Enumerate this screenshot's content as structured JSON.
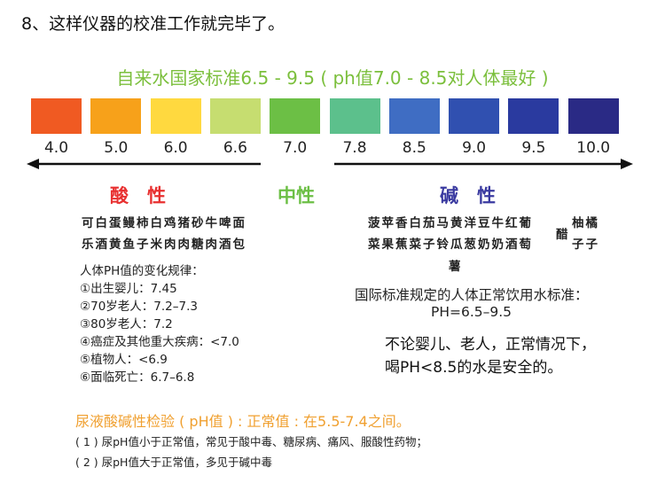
{
  "step_title": "8、这样仪器的校准工作就完毕了。",
  "scale_title": "自来水国家标准6.5 - 9.5 ( ph值7.0 - 8.5对人体最好 )",
  "scale": {
    "swatches": [
      {
        "label": "4.0",
        "color": "#f05a22"
      },
      {
        "label": "5.0",
        "color": "#f7a11a"
      },
      {
        "label": "6.0",
        "color": "#ffd93f"
      },
      {
        "label": "6.6",
        "color": "#c6dd70"
      },
      {
        "label": "7.0",
        "color": "#6cbf45"
      },
      {
        "label": "7.8",
        "color": "#5cc08c"
      },
      {
        "label": "8.5",
        "color": "#3f6dc3"
      },
      {
        "label": "9.0",
        "color": "#3050b0"
      },
      {
        "label": "9.5",
        "color": "#2a3a9f"
      },
      {
        "label": "10.0",
        "color": "#2a2a85"
      }
    ]
  },
  "categories": {
    "acid": "酸　性",
    "neutral": "中性",
    "alkaline": "碱　性",
    "acid_color": "#e83030",
    "neutral_color": "#6cbf45",
    "alkaline_color": "#3a3aa0"
  },
  "acid_foods": [
    "可白蛋鳗柿白鸡猪砂牛啤面",
    "乐酒黄鱼子米肉肉糖肉酒包"
  ],
  "alkaline_foods": {
    "line1": "菠苹香白茄马黄洋豆牛红葡",
    "line2": "菜果蕉菜子铃瓜葱奶奶酒萄",
    "line3": "薯",
    "vinegar": "醋",
    "side1": "柚橘",
    "side2": "子子"
  },
  "ph_rules": {
    "title": "人体PH值的变化规律：",
    "items": [
      "①出生婴儿：7.45",
      "②70岁老人：7.2–7.3",
      "③80岁老人：7.2",
      "④癌症及其他重大疾病：<7.0",
      "⑤植物人：<6.9",
      "⑥面临死亡：6.7–6.8"
    ]
  },
  "intl_standard": {
    "title": "国际标准规定的人体正常饮用水标准：",
    "value": "PH=6.5–9.5"
  },
  "safety_note": [
    "不论婴儿、老人，正常情况下，",
    "喝PH<8.5的水是安全的。"
  ],
  "urine": {
    "title": "尿液酸碱性检验 ( pH值 ) : 正常值 : 在5.5-7.4之间。",
    "notes": [
      "( 1 ) 尿pH值小于正常值，常见于酸中毒、糖尿病、痛风、服酸性药物；",
      "( 2 ) 尿pH值大于正常值，多见于碱中毒"
    ]
  }
}
